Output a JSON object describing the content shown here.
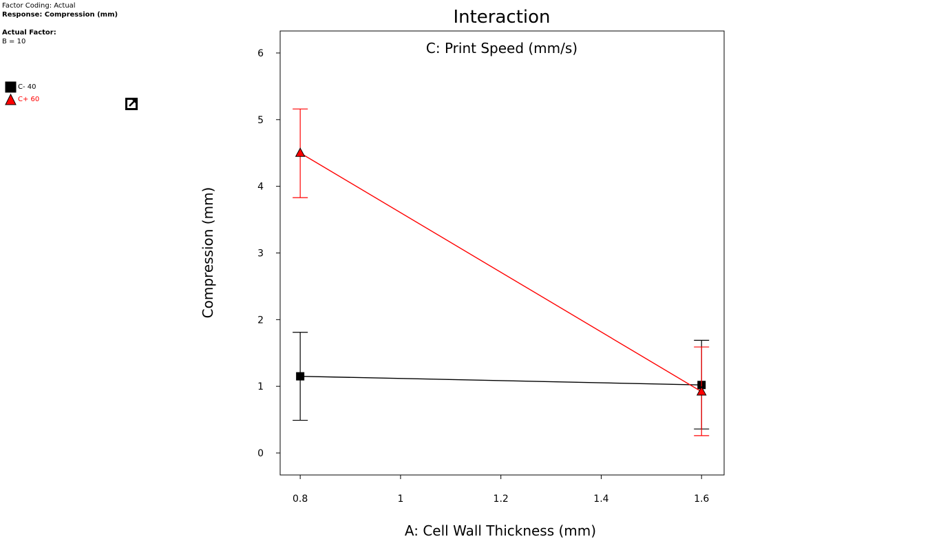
{
  "info": {
    "factor_coding": "Factor Coding: Actual",
    "response": "Response: Compression (mm)",
    "actual_factor_heading": "Actual Factor:",
    "actual_factor_value": "B = 10"
  },
  "legend": {
    "items": [
      {
        "label": "C- 40",
        "color": "#000000",
        "marker": "square"
      },
      {
        "label": "C+ 60",
        "color": "#ff0000",
        "marker": "triangle"
      }
    ]
  },
  "chart_data": {
    "type": "line",
    "title": "Interaction",
    "subtitle": "C: Print Speed (mm/s)",
    "xlabel": "A: Cell Wall Thickness (mm)",
    "ylabel": "Compression (mm)",
    "xlim": [
      0.76,
      1.645
    ],
    "ylim": [
      -0.33,
      6.33
    ],
    "xticks": [
      0.8,
      1,
      1.2,
      1.4,
      1.6
    ],
    "xtick_labels": [
      "0.8",
      "1",
      "1.2",
      "1.4",
      "1.6"
    ],
    "yticks": [
      0,
      1,
      2,
      3,
      4,
      5,
      6
    ],
    "ytick_labels": [
      "0",
      "1",
      "2",
      "3",
      "4",
      "5",
      "6"
    ],
    "grid": false,
    "series": [
      {
        "name": "C- 40",
        "color": "#000000",
        "marker": "square",
        "points": [
          {
            "x": 0.8,
            "y": 1.15,
            "lo": 0.49,
            "hi": 1.81
          },
          {
            "x": 1.6,
            "y": 1.02,
            "lo": 0.36,
            "hi": 1.69
          }
        ]
      },
      {
        "name": "C+ 60",
        "color": "#ff0000",
        "marker": "triangle",
        "points": [
          {
            "x": 0.8,
            "y": 4.5,
            "lo": 3.83,
            "hi": 5.16
          },
          {
            "x": 1.6,
            "y": 0.92,
            "lo": 0.26,
            "hi": 1.59
          }
        ]
      }
    ]
  }
}
